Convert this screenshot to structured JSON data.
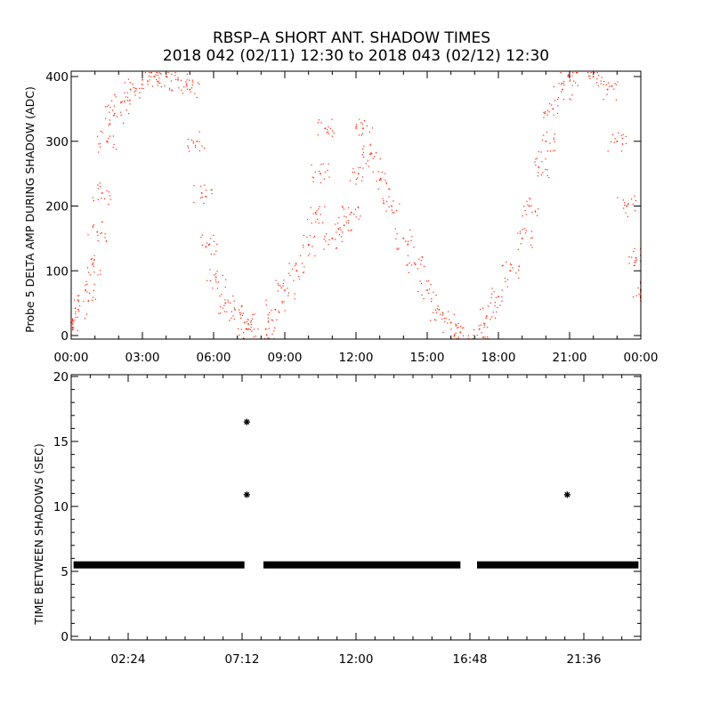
{
  "title_line1": "RBSP–A SHORT ANT. SHADOW TIMES",
  "title_line2": "2018 042 (02/11) 12:30 to 2018 043 (02/12) 12:30",
  "colors": {
    "top_points": "#ff2200",
    "bottom_points": "#000000",
    "axes": "#000000",
    "background": "#ffffff"
  },
  "chart_data": [
    {
      "type": "scatter",
      "title": "",
      "xlabel": "",
      "ylabel": "Probe 5 DELTA AMP DURING SHADOW (ADC)",
      "xlim": [
        0,
        24
      ],
      "ylim": [
        0,
        400
      ],
      "x_unit": "hours",
      "y_ticks": [
        0,
        100,
        200,
        300,
        400
      ],
      "x_ticks": [
        0,
        3,
        6,
        9,
        12,
        15,
        18,
        21,
        24
      ],
      "x_tick_labels": [
        "00:00",
        "03:00",
        "06:00",
        "09:00",
        "12:00",
        "15:00",
        "18:00",
        "21:00",
        "00:00"
      ],
      "marker_color": "#ff2200",
      "series": [
        {
          "points": [
            [
              0.0,
              20
            ],
            [
              0.3,
              40
            ],
            [
              0.6,
              70
            ],
            [
              0.9,
              110
            ],
            [
              1.1,
              160
            ],
            [
              1.3,
              220
            ],
            [
              1.5,
              300
            ],
            [
              1.8,
              340
            ],
            [
              2.1,
              360
            ],
            [
              2.5,
              380
            ],
            [
              3.0,
              395
            ],
            [
              3.5,
              400
            ],
            [
              4.0,
              400
            ],
            [
              4.5,
              395
            ],
            [
              5.0,
              380
            ],
            [
              5.3,
              300
            ],
            [
              5.5,
              220
            ],
            [
              5.8,
              140
            ],
            [
              6.1,
              90
            ],
            [
              6.5,
              50
            ],
            [
              6.9,
              40
            ],
            [
              7.3,
              20
            ],
            [
              7.4,
              10
            ],
            [
              8.2,
              10
            ],
            [
              8.6,
              40
            ],
            [
              9.0,
              70
            ],
            [
              9.5,
              100
            ],
            [
              10.0,
              140
            ],
            [
              10.3,
              190
            ],
            [
              10.5,
              250
            ],
            [
              10.7,
              320
            ],
            [
              11.0,
              150
            ],
            [
              11.5,
              170
            ],
            [
              11.8,
              190
            ],
            [
              12.1,
              250
            ],
            [
              12.3,
              320
            ],
            [
              12.6,
              280
            ],
            [
              13.0,
              240
            ],
            [
              13.5,
              200
            ],
            [
              14.0,
              150
            ],
            [
              14.5,
              110
            ],
            [
              15.0,
              70
            ],
            [
              15.5,
              40
            ],
            [
              16.0,
              20
            ],
            [
              16.4,
              5
            ],
            [
              17.2,
              10
            ],
            [
              17.5,
              30
            ],
            [
              18.0,
              60
            ],
            [
              18.5,
              100
            ],
            [
              19.0,
              150
            ],
            [
              19.3,
              200
            ],
            [
              19.7,
              260
            ],
            [
              20.0,
              300
            ],
            [
              20.3,
              350
            ],
            [
              20.7,
              380
            ],
            [
              21.0,
              400
            ],
            [
              22.0,
              400
            ],
            [
              22.6,
              380
            ],
            [
              23.0,
              300
            ],
            [
              23.4,
              200
            ],
            [
              23.8,
              120
            ],
            [
              24.0,
              70
            ]
          ]
        }
      ]
    },
    {
      "type": "scatter",
      "title": "",
      "xlabel": "",
      "ylabel": "TIME BETWEEN SHADOWS (SEC)",
      "xlim": [
        0,
        24
      ],
      "ylim": [
        0,
        20
      ],
      "x_unit": "hours",
      "y_ticks": [
        0,
        5,
        10,
        15,
        20
      ],
      "x_ticks": [
        2.4,
        7.2,
        12.0,
        16.8,
        21.6
      ],
      "x_tick_labels": [
        "02:24",
        "07:12",
        "12:00",
        "16:48",
        "21:36"
      ],
      "marker": "asterisk",
      "marker_color": "#000000",
      "baseline_value": 5.5,
      "baseline_segments": [
        [
          0.1,
          7.3
        ],
        [
          8.1,
          16.4
        ],
        [
          17.1,
          23.9
        ]
      ],
      "outliers": [
        {
          "x": 7.4,
          "y": 16.5
        },
        {
          "x": 7.4,
          "y": 10.9
        },
        {
          "x": 20.9,
          "y": 10.9
        }
      ]
    }
  ]
}
